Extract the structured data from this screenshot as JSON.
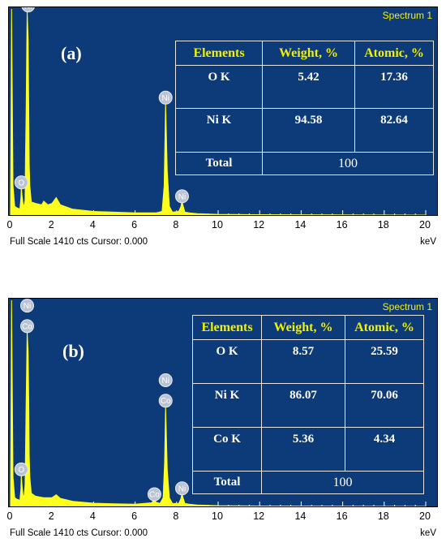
{
  "chart_data": [
    {
      "type": "line",
      "panel_label": "(a)",
      "spectrum_label": "Spectrum 1",
      "xlabel": "keV",
      "xlim": [
        0,
        20
      ],
      "ylim": [
        0,
        1410
      ],
      "x_ticks": [
        "0",
        "2",
        "4",
        "6",
        "8",
        "10",
        "12",
        "14",
        "16",
        "18",
        "20"
      ],
      "footer": "Full Scale 1410 cts Cursor: 0.000",
      "series": [
        {
          "x": [
            0,
            0.05,
            0.12,
            0.2,
            0.3,
            0.4,
            0.45,
            0.5,
            0.52,
            0.55,
            0.6,
            0.65,
            0.7,
            0.72,
            0.75,
            0.78,
            0.8,
            0.85,
            0.88,
            0.9,
            0.93,
            1.0,
            1.2,
            1.5,
            1.6,
            1.8,
            2.0,
            2.2,
            2.4,
            3.0,
            4.0,
            5.0,
            6.0,
            7.0,
            7.3,
            7.4,
            7.47,
            7.55,
            7.65,
            7.8,
            8.1,
            8.2,
            8.26,
            8.32,
            8.4,
            8.6,
            9.0,
            10.0,
            12.0,
            20.0
          ],
          "y": [
            0,
            1410,
            200,
            60,
            50,
            45,
            40,
            120,
            190,
            140,
            80,
            55,
            100,
            400,
            700,
            1150,
            1400,
            1200,
            700,
            350,
            200,
            90,
            80,
            70,
            95,
            70,
            80,
            120,
            70,
            40,
            25,
            20,
            15,
            15,
            25,
            200,
            770,
            300,
            60,
            20,
            25,
            55,
            95,
            60,
            20,
            15,
            10,
            5,
            3,
            0
          ]
        }
      ],
      "peak_labels": [
        {
          "text": "Ni",
          "x": 0.85,
          "y": 1400
        },
        {
          "text": "O",
          "x": 0.52,
          "y": 190
        },
        {
          "text": "Ni",
          "x": 7.47,
          "y": 770
        },
        {
          "text": "Ni",
          "x": 8.26,
          "y": 95
        }
      ],
      "table": {
        "headers": [
          "Elements",
          "Weight, %",
          "Atomic, %"
        ],
        "rows": [
          [
            "O K",
            "5.42",
            "17.36"
          ],
          [
            "Ni K",
            "94.58",
            "82.64"
          ]
        ],
        "total_label": "Total",
        "total_value": "100"
      }
    },
    {
      "type": "line",
      "panel_label": "(b)",
      "spectrum_label": "Spectrum 1",
      "xlabel": "keV",
      "xlim": [
        0,
        20
      ],
      "ylim": [
        0,
        1410
      ],
      "x_ticks": [
        "0",
        "2",
        "4",
        "6",
        "8",
        "10",
        "12",
        "14",
        "16",
        "18",
        "20"
      ],
      "footer": "Full Scale 1410 cts Cursor: 0.000",
      "series": [
        {
          "x": [
            0,
            0.05,
            0.12,
            0.2,
            0.3,
            0.4,
            0.45,
            0.5,
            0.52,
            0.55,
            0.6,
            0.65,
            0.7,
            0.75,
            0.8,
            0.85,
            0.88,
            0.9,
            0.93,
            1.0,
            1.2,
            1.6,
            2.0,
            2.2,
            2.4,
            3.0,
            4.0,
            5.0,
            6.0,
            6.8,
            6.93,
            7.0,
            7.2,
            7.35,
            7.42,
            7.47,
            7.55,
            7.65,
            7.8,
            8.1,
            8.2,
            8.26,
            8.32,
            8.4,
            8.6,
            9.0,
            10.0,
            12.0,
            20.0
          ],
          "y": [
            0,
            1410,
            200,
            60,
            50,
            45,
            40,
            120,
            220,
            150,
            80,
            60,
            150,
            700,
            1200,
            1050,
            700,
            350,
            200,
            90,
            70,
            60,
            60,
            80,
            55,
            35,
            22,
            18,
            15,
            25,
            50,
            30,
            20,
            60,
            300,
            690,
            250,
            60,
            20,
            20,
            50,
            90,
            55,
            20,
            15,
            10,
            5,
            3,
            0
          ]
        }
      ],
      "peak_labels": [
        {
          "text": "Ni",
          "x": 0.8,
          "y": 1340
        },
        {
          "text": "Co",
          "x": 0.8,
          "y": 1200
        },
        {
          "text": "O",
          "x": 0.52,
          "y": 220
        },
        {
          "text": "Ni",
          "x": 7.47,
          "y": 830
        },
        {
          "text": "Co",
          "x": 7.47,
          "y": 690
        },
        {
          "text": "Co",
          "x": 6.93,
          "y": 50
        },
        {
          "text": "Ni",
          "x": 8.26,
          "y": 90
        }
      ],
      "table": {
        "headers": [
          "Elements",
          "Weight, %",
          "Atomic, %"
        ],
        "rows": [
          [
            "O K",
            "8.57",
            "25.59"
          ],
          [
            "Ni K",
            "86.07",
            "70.06"
          ],
          [
            "Co K",
            "5.36",
            "4.34"
          ]
        ],
        "total_label": "Total",
        "total_value": "100"
      }
    }
  ]
}
